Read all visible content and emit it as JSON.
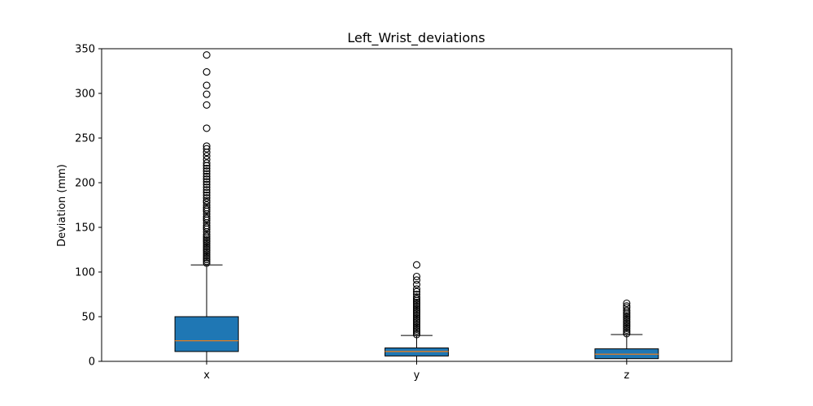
{
  "chart_data": {
    "type": "box",
    "title": "Left_Wrist_deviations",
    "xlabel": "",
    "ylabel": "Deviation (mm)",
    "ylim": [
      0,
      350
    ],
    "yticks": [
      0,
      50,
      100,
      150,
      200,
      250,
      300,
      350
    ],
    "categories": [
      "x",
      "y",
      "z"
    ],
    "box_color": "#1f77b4",
    "median_color": "#ff7f0e",
    "grid": false,
    "legend": "none",
    "boxes": [
      {
        "name": "x",
        "whisker_low": 0,
        "q1": 11,
        "median": 23,
        "q3": 50,
        "whisker_high": 108,
        "outliers": [
          110,
          112,
          114,
          116,
          118,
          120,
          122,
          124,
          126,
          128,
          130,
          132,
          134,
          136,
          138,
          140,
          142,
          145,
          148,
          150,
          152,
          155,
          158,
          160,
          162,
          165,
          168,
          170,
          172,
          175,
          178,
          180,
          183,
          186,
          189,
          192,
          195,
          198,
          201,
          204,
          207,
          210,
          213,
          216,
          219,
          222,
          226,
          230,
          234,
          238,
          241,
          261,
          287,
          299,
          309,
          324,
          343
        ]
      },
      {
        "name": "y",
        "whisker_low": 0,
        "q1": 6,
        "median": 11,
        "q3": 15,
        "whisker_high": 29,
        "outliers": [
          30,
          32,
          34,
          36,
          38,
          40,
          42,
          44,
          46,
          48,
          50,
          52,
          54,
          56,
          58,
          60,
          62,
          64,
          66,
          68,
          70,
          72,
          75,
          78,
          81,
          86,
          91,
          95,
          108
        ]
      },
      {
        "name": "z",
        "whisker_low": 0,
        "q1": 3,
        "median": 8,
        "q3": 14,
        "whisker_high": 30,
        "outliers": [
          31,
          33,
          35,
          37,
          39,
          41,
          43,
          45,
          47,
          49,
          51,
          53,
          55,
          57,
          60,
          62,
          65
        ]
      }
    ]
  }
}
